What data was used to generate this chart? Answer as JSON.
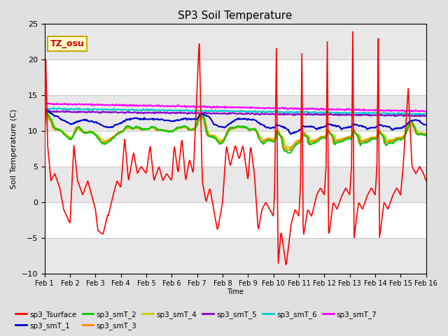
{
  "title": "SP3 Soil Temperature",
  "ylabel": "Soil Temperature (C)",
  "xlabel": "Time",
  "annotation_text": "TZ_osu",
  "annotation_bg": "#ffffcc",
  "annotation_border": "#ccaa00",
  "ylim": [
    -10,
    25
  ],
  "yticks": [
    -10,
    -5,
    0,
    5,
    10,
    15,
    20,
    25
  ],
  "xtick_labels": [
    "Feb 1",
    "Feb 2",
    "Feb 3",
    "Feb 4",
    "Feb 5",
    "Feb 6",
    "Feb 7",
    "Feb 8",
    "Feb 9",
    "Feb 10",
    "Feb 11",
    "Feb 12",
    "Feb 13",
    "Feb 14",
    "Feb 15",
    "Feb 16"
  ],
  "plot_bg_color": "#ffffff",
  "fig_bg_color": "#e0e0e0",
  "series_colors": {
    "sp3_Tsurface": "#ff0000",
    "sp3_smT_1": "#0000cc",
    "sp3_smT_2": "#00cc00",
    "sp3_smT_3": "#ff8800",
    "sp3_smT_4": "#cccc00",
    "sp3_smT_5": "#8800cc",
    "sp3_smT_6": "#00cccc",
    "sp3_smT_7": "#ff00ff"
  },
  "legend_entries": [
    "sp3_Tsurface",
    "sp3_smT_1",
    "sp3_smT_2",
    "sp3_smT_3",
    "sp3_smT_4",
    "sp3_smT_5",
    "sp3_smT_6",
    "sp3_smT_7"
  ]
}
